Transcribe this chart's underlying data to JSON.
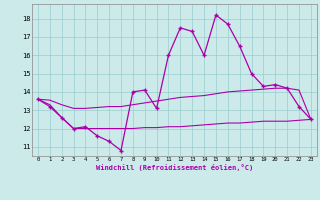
{
  "xlabel": "Windchill (Refroidissement éolien,°C)",
  "bg_color": "#cceaea",
  "grid_color": "#99cccc",
  "line_color": "#aa00aa",
  "hours": [
    0,
    1,
    2,
    3,
    4,
    5,
    6,
    7,
    8,
    9,
    10,
    11,
    12,
    13,
    14,
    15,
    16,
    17,
    18,
    19,
    20,
    21,
    22,
    23
  ],
  "temp_line": [
    13.6,
    13.2,
    12.6,
    12.0,
    12.1,
    11.6,
    11.3,
    10.8,
    14.0,
    14.1,
    13.1,
    16.0,
    17.5,
    17.3,
    16.0,
    18.2,
    17.7,
    16.5,
    15.0,
    14.3,
    14.4,
    14.2,
    13.2,
    12.5
  ],
  "smooth_high": [
    13.6,
    13.55,
    13.3,
    13.1,
    13.1,
    13.15,
    13.2,
    13.2,
    13.3,
    13.4,
    13.5,
    13.6,
    13.7,
    13.75,
    13.8,
    13.9,
    14.0,
    14.05,
    14.1,
    14.15,
    14.2,
    14.2,
    14.1,
    12.5
  ],
  "smooth_low": [
    13.6,
    13.3,
    12.6,
    12.0,
    12.0,
    12.0,
    12.0,
    12.0,
    12.0,
    12.05,
    12.05,
    12.1,
    12.1,
    12.15,
    12.2,
    12.25,
    12.3,
    12.3,
    12.35,
    12.4,
    12.4,
    12.4,
    12.45,
    12.5
  ],
  "ylim": [
    10.5,
    18.8
  ],
  "yticks": [
    11,
    12,
    13,
    14,
    15,
    16,
    17,
    18
  ],
  "xticks": [
    0,
    1,
    2,
    3,
    4,
    5,
    6,
    7,
    8,
    9,
    10,
    11,
    12,
    13,
    14,
    15,
    16,
    17,
    18,
    19,
    20,
    21,
    22,
    23
  ]
}
